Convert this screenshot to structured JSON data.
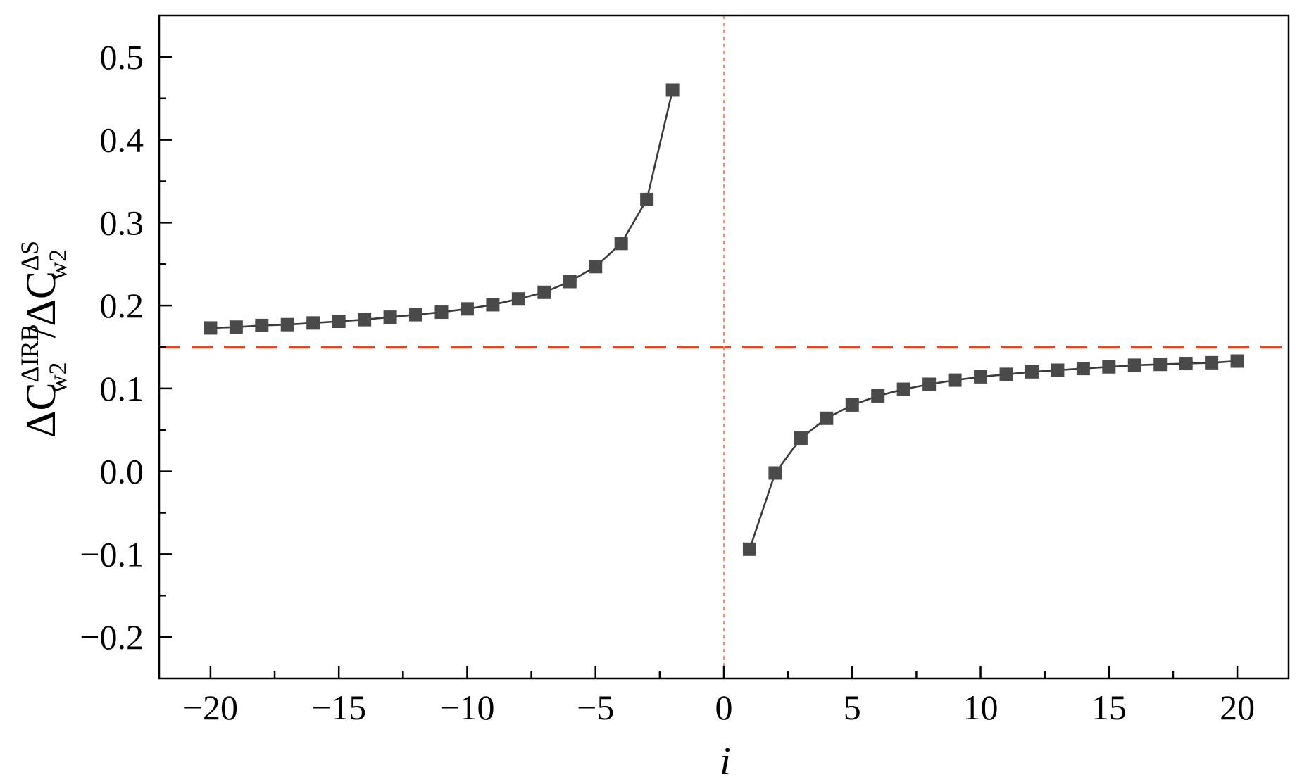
{
  "chart_data": {
    "type": "line",
    "title": "",
    "xlabel": "i",
    "ylabel": {
      "delta1": "Δ",
      "c1": "C",
      "sup1": "ΔIRB",
      "sub1": "w2",
      "slash": "/",
      "delta2": "Δ",
      "c2": "C",
      "sup2": "ΔS",
      "sub2": "w2"
    },
    "xlim": [
      -22,
      22
    ],
    "ylim": [
      -0.25,
      0.55
    ],
    "xticks": [
      -20,
      -15,
      -10,
      -5,
      0,
      5,
      10,
      15,
      20
    ],
    "xtick_labels": [
      "−20",
      "−15",
      "−10",
      "−5",
      "0",
      "5",
      "10",
      "15",
      "20"
    ],
    "yticks": [
      -0.2,
      -0.1,
      0.0,
      0.1,
      0.2,
      0.3,
      0.4,
      0.5
    ],
    "ytick_labels": [
      "−0.2",
      "−0.1",
      "0.0",
      "0.1",
      "0.2",
      "0.3",
      "0.4",
      "0.5"
    ],
    "grid": false,
    "series": [
      {
        "marker": "square",
        "color": "#4a4a4a",
        "x": [
          -20,
          -19,
          -18,
          -17,
          -16,
          -15,
          -14,
          -13,
          -12,
          -11,
          -10,
          -9,
          -8,
          -7,
          -6,
          -5,
          -4,
          -3,
          -2
        ],
        "y": [
          0.173,
          0.174,
          0.176,
          0.177,
          0.179,
          0.181,
          0.183,
          0.186,
          0.189,
          0.192,
          0.196,
          0.201,
          0.208,
          0.216,
          0.229,
          0.247,
          0.275,
          0.328,
          0.46
        ]
      },
      {
        "marker": "square",
        "color": "#4a4a4a",
        "x": [
          1,
          2,
          3,
          4,
          5,
          6,
          7,
          8,
          9,
          10,
          11,
          12,
          13,
          14,
          15,
          16,
          17,
          18,
          19,
          20
        ],
        "y": [
          -0.094,
          -0.002,
          0.04,
          0.064,
          0.08,
          0.091,
          0.099,
          0.105,
          0.11,
          0.114,
          0.117,
          0.12,
          0.122,
          0.124,
          0.126,
          0.128,
          0.129,
          0.13,
          0.131,
          0.133
        ]
      }
    ],
    "reference_lines": [
      {
        "orientation": "horizontal",
        "value": 0.15,
        "style": "dashed",
        "color": "#e8431f"
      },
      {
        "orientation": "vertical",
        "value": 0,
        "style": "dotted",
        "color": "#f08a70"
      }
    ]
  }
}
